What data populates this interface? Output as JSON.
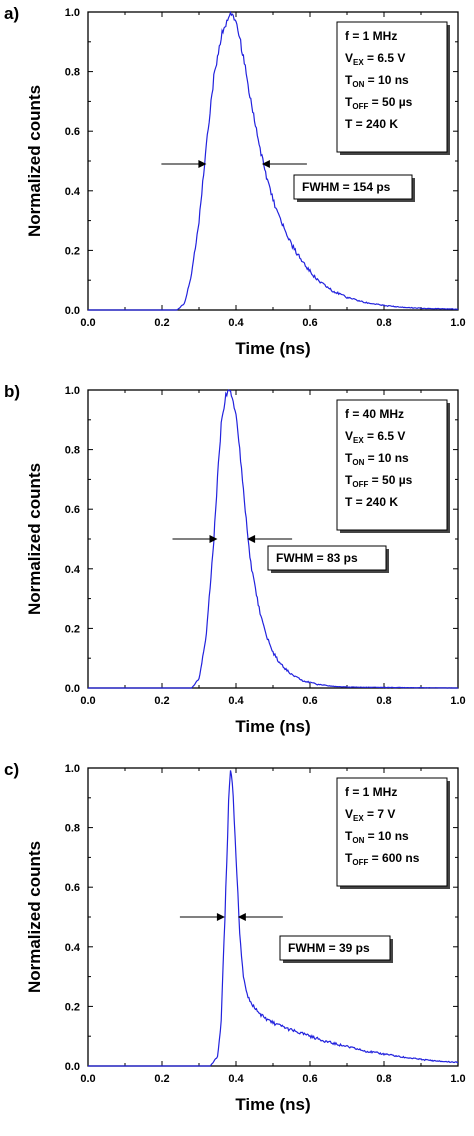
{
  "chart_data": [
    {
      "type": "line",
      "panel_label": "a)",
      "xlabel": "Time (ns)",
      "ylabel": "Normalized counts",
      "xlim": [
        0.0,
        1.0
      ],
      "ylim": [
        0.0,
        1.0
      ],
      "x_ticks": [
        "0.0",
        "0.2",
        "0.4",
        "0.6",
        "0.8",
        "1.0"
      ],
      "y_ticks": [
        "0.0",
        "0.2",
        "0.4",
        "0.6",
        "0.8",
        "1.0"
      ],
      "series": [
        {
          "color": "#2222dd",
          "x": [
            0.0,
            0.24,
            0.26,
            0.28,
            0.3,
            0.32,
            0.34,
            0.36,
            0.38,
            0.39,
            0.4,
            0.42,
            0.44,
            0.46,
            0.48,
            0.5,
            0.52,
            0.55,
            0.58,
            0.62,
            0.66,
            0.7,
            0.75,
            0.8,
            0.85,
            0.9,
            0.95,
            1.0
          ],
          "y": [
            0.0,
            0.0,
            0.02,
            0.12,
            0.3,
            0.55,
            0.78,
            0.92,
            0.98,
            1.0,
            0.97,
            0.85,
            0.7,
            0.57,
            0.46,
            0.37,
            0.3,
            0.22,
            0.16,
            0.1,
            0.065,
            0.042,
            0.025,
            0.015,
            0.009,
            0.006,
            0.004,
            0.003
          ]
        }
      ],
      "annotation_lines": [
        "f = 1 MHz",
        "V",
        "EX",
        " = 6.5 V",
        "T",
        "ON",
        " = 10 ns",
        "T",
        "OFF",
        " = 50 µs",
        "T = 240 K"
      ],
      "fwhm_label": "FWHM = 154 ps",
      "fwhm_y": 0.49,
      "fwhm_left_x": 0.32,
      "fwhm_right_x": 0.47
    },
    {
      "type": "line",
      "panel_label": "b)",
      "xlabel": "Time (ns)",
      "ylabel": "Normalized counts",
      "xlim": [
        0.0,
        1.0
      ],
      "ylim": [
        0.0,
        1.0
      ],
      "x_ticks": [
        "0.0",
        "0.2",
        "0.4",
        "0.6",
        "0.8",
        "1.0"
      ],
      "y_ticks": [
        "0.0",
        "0.2",
        "0.4",
        "0.6",
        "0.8",
        "1.0"
      ],
      "series": [
        {
          "color": "#2222dd",
          "x": [
            0.0,
            0.28,
            0.3,
            0.32,
            0.34,
            0.35,
            0.36,
            0.37,
            0.38,
            0.39,
            0.4,
            0.41,
            0.42,
            0.43,
            0.44,
            0.46,
            0.48,
            0.5,
            0.52,
            0.55,
            0.58,
            0.62,
            0.66,
            0.7,
            1.0
          ],
          "y": [
            0.0,
            0.0,
            0.03,
            0.18,
            0.5,
            0.7,
            0.88,
            0.97,
            1.0,
            0.98,
            0.92,
            0.8,
            0.66,
            0.53,
            0.42,
            0.28,
            0.18,
            0.12,
            0.08,
            0.045,
            0.025,
            0.012,
            0.006,
            0.003,
            0.0
          ]
        }
      ],
      "annotation_lines": [
        "f = 40 MHz",
        "V",
        "EX",
        " = 6.5 V",
        "T",
        "ON",
        " = 10 ns",
        "T",
        "OFF",
        " = 50 µs",
        "T = 240 K"
      ],
      "fwhm_label": "FWHM = 83 ps",
      "fwhm_y": 0.5,
      "fwhm_left_x": 0.35,
      "fwhm_right_x": 0.43
    },
    {
      "type": "line",
      "panel_label": "c)",
      "xlabel": "Time (ns)",
      "ylabel": "Normalized counts",
      "xlim": [
        0.0,
        1.0
      ],
      "ylim": [
        0.0,
        1.0
      ],
      "x_ticks": [
        "0.0",
        "0.2",
        "0.4",
        "0.6",
        "0.8",
        "1.0"
      ],
      "y_ticks": [
        "0.0",
        "0.2",
        "0.4",
        "0.6",
        "0.8",
        "1.0"
      ],
      "series": [
        {
          "color": "#2222dd",
          "x": [
            0.0,
            0.33,
            0.35,
            0.36,
            0.37,
            0.38,
            0.385,
            0.39,
            0.4,
            0.41,
            0.42,
            0.43,
            0.44,
            0.46,
            0.48,
            0.5,
            0.55,
            0.6,
            0.65,
            0.7,
            0.75,
            0.8,
            0.85,
            0.9,
            0.95,
            1.0
          ],
          "y": [
            0.0,
            0.0,
            0.03,
            0.15,
            0.5,
            0.88,
            0.98,
            0.96,
            0.7,
            0.45,
            0.3,
            0.24,
            0.21,
            0.18,
            0.16,
            0.145,
            0.12,
            0.1,
            0.08,
            0.065,
            0.05,
            0.04,
            0.03,
            0.022,
            0.016,
            0.012
          ]
        }
      ],
      "annotation_lines": [
        "f = 1 MHz",
        "V",
        "EX",
        " = 7 V",
        "T",
        "ON",
        " = 10 ns",
        "T",
        "OFF",
        " = 600 ns"
      ],
      "fwhm_label": "FWHM = 39 ps",
      "fwhm_y": 0.5,
      "fwhm_left_x": 0.37,
      "fwhm_right_x": 0.405
    }
  ]
}
